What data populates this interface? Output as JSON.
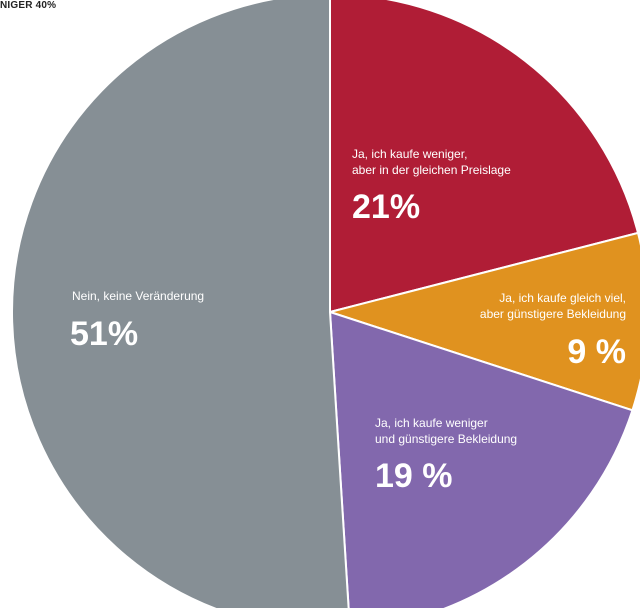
{
  "header": {
    "text": "NIGER 40%"
  },
  "chart_data": {
    "type": "pie",
    "title": "",
    "slices": [
      {
        "label_lines": [
          "Ja, ich kaufe weniger,",
          "aber in der gleichen Preislage"
        ],
        "value": 21,
        "value_label": "21%",
        "color": "#b01d36"
      },
      {
        "label_lines": [
          "Ja, ich kaufe gleich viel,",
          "aber günstigere Bekleidung"
        ],
        "value": 9,
        "value_label": "9 %",
        "color": "#e0921f"
      },
      {
        "label_lines": [
          "Ja, ich kaufe weniger",
          "und günstigere Bekleidung"
        ],
        "value": 19,
        "value_label": "19 %",
        "color": "#8268ad"
      },
      {
        "label_lines": [
          "Nein, keine Veränderung"
        ],
        "value": 51,
        "value_label": "51%",
        "color": "#868f95"
      }
    ]
  }
}
